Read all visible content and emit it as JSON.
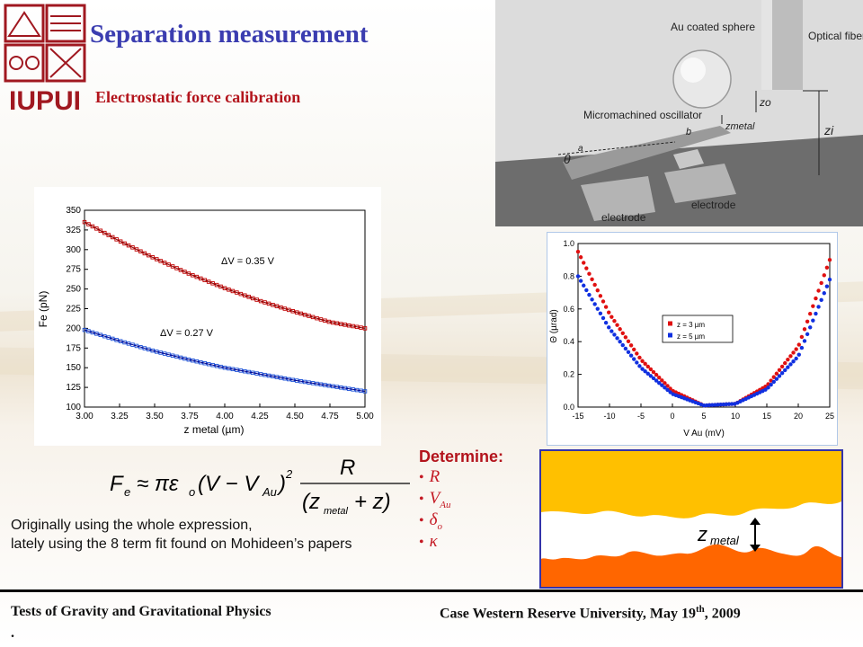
{
  "header": {
    "title": "Separation measurement",
    "subtitle": "Electrostatic force calibration",
    "logo_text": "IUPUI"
  },
  "device_figure": {
    "labels": {
      "sphere": "Au coated sphere",
      "fiber": "Optical fiber",
      "oscillator": "Micromachined oscillator",
      "electrode1": "electrode",
      "electrode2": "electrode",
      "zo": "zo",
      "zmetal": "zmetal",
      "zi": "zi",
      "b": "b",
      "a": "a",
      "theta": "θ"
    }
  },
  "chart_data": [
    {
      "type": "scatter",
      "xlabel": "z metal (µm)",
      "ylabel": "Fe (pN)",
      "xlim": [
        3.0,
        5.0
      ],
      "ylim": [
        100,
        350
      ],
      "xticks": [
        "3.00",
        "3.25",
        "3.50",
        "3.75",
        "4.00",
        "4.25",
        "4.50",
        "4.75",
        "5.00"
      ],
      "yticks": [
        "100",
        "125",
        "150",
        "175",
        "200",
        "225",
        "250",
        "275",
        "300",
        "325",
        "350"
      ],
      "series": [
        {
          "name": "ΔV = 0.35 V",
          "color": "#c00000",
          "x": [
            3.0,
            3.25,
            3.5,
            3.75,
            4.0,
            4.25,
            4.5,
            4.75,
            5.0
          ],
          "values": [
            335,
            311,
            289,
            269,
            251,
            235,
            221,
            208,
            200
          ]
        },
        {
          "name": "ΔV = 0.27 V",
          "color": "#1a4fd6",
          "x": [
            3.0,
            3.25,
            3.5,
            3.75,
            4.0,
            4.25,
            4.5,
            4.75,
            5.0
          ],
          "values": [
            198,
            184,
            171,
            160,
            150,
            142,
            134,
            127,
            120
          ]
        }
      ],
      "annotations": [
        "ΔV = 0.35 V",
        "ΔV = 0.27 V"
      ],
      "grid": false
    },
    {
      "type": "scatter",
      "xlabel": "V Au (mV)",
      "ylabel": "Θ (µrad)",
      "xlim": [
        -15,
        25
      ],
      "ylim": [
        0.0,
        1.0
      ],
      "xticks": [
        "-15",
        "-10",
        "-5",
        "0",
        "5",
        "10",
        "15",
        "20",
        "25"
      ],
      "yticks": [
        "0.0",
        "0.2",
        "0.4",
        "0.6",
        "0.8",
        "1.0"
      ],
      "legend": "center-right",
      "series": [
        {
          "name": "z = 3 µm",
          "color": "#e01010",
          "x": [
            -15,
            -10,
            -5,
            0,
            5,
            10,
            15,
            20,
            25
          ],
          "values": [
            0.95,
            0.57,
            0.29,
            0.1,
            0.01,
            0.02,
            0.13,
            0.37,
            0.9
          ]
        },
        {
          "name": "z = 5 µm",
          "color": "#1030e0",
          "x": [
            -15,
            -10,
            -5,
            0,
            5,
            10,
            15,
            20,
            25
          ],
          "values": [
            0.8,
            0.48,
            0.24,
            0.08,
            0.01,
            0.02,
            0.11,
            0.31,
            0.78
          ]
        }
      ],
      "grid": false
    }
  ],
  "formula": {
    "lhs": "F",
    "lhs_sub": "e",
    "approx": "≈ πε",
    "eps_sub": "o",
    "paren": "(V − V",
    "vau_sub": "Au",
    "paren_close": ")",
    "exp": "2",
    "numerator": "R",
    "denominator": "(z",
    "den_sub": "metal",
    "den_tail": "+ z)"
  },
  "note": {
    "line1": "Originally using the whole expression,",
    "line2": "lately using the 8 term fit found on Mohideen’s papers"
  },
  "determine": {
    "title": "Determine:",
    "items": [
      "R",
      "V",
      "δ",
      "κ"
    ],
    "subs": [
      "",
      "Au",
      "o",
      ""
    ]
  },
  "gap_figure": {
    "label": "z",
    "label_sub": "metal",
    "colors": {
      "top": "#ffc000",
      "bottom": "#ff6600",
      "frame": "#3333aa"
    }
  },
  "footer": {
    "left": "Tests of Gravity and Gravitational Physics",
    "right_pre": "Case Western Reserve University, May 19",
    "right_sup": "th",
    "right_post": ", 2009",
    "dot": "."
  }
}
